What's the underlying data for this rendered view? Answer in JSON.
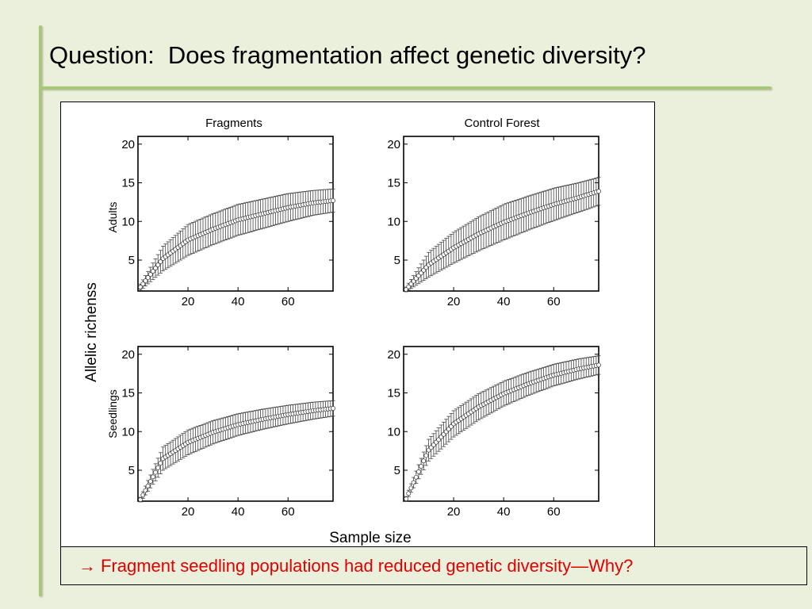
{
  "slide": {
    "title": "Question:  Does fragmentation affect genetic diversity?",
    "conclusion_arrow": "→",
    "conclusion_text": "Fragment seedling populations had reduced genetic diversity—Why?",
    "accent_color": "#a8c878",
    "conclusion_color": "#e00000"
  },
  "figure": {
    "y_label": "Allelic richenss",
    "x_label": "Sample size"
  },
  "chart_data": [
    {
      "type": "scatter",
      "panel": "top-left",
      "column_title": "Fragments",
      "row_label": "Adults",
      "xlim": [
        0,
        78
      ],
      "ylim": [
        1,
        21
      ],
      "xticks": [
        20,
        40,
        60
      ],
      "yticks": [
        5,
        10,
        15,
        20
      ],
      "x": [
        1,
        10,
        20,
        30,
        40,
        50,
        60,
        70,
        78
      ],
      "y": [
        1.5,
        5.2,
        7.6,
        9.0,
        10.2,
        11.0,
        11.8,
        12.4,
        12.7
      ],
      "err": [
        0.4,
        1.6,
        2.0,
        2.0,
        2.0,
        1.9,
        1.8,
        1.6,
        1.5
      ]
    },
    {
      "type": "scatter",
      "panel": "top-right",
      "column_title": "Control Forest",
      "row_label": "Adults",
      "xlim": [
        0,
        78
      ],
      "ylim": [
        1,
        21
      ],
      "xticks": [
        20,
        40,
        60
      ],
      "yticks": [
        5,
        10,
        15,
        20
      ],
      "x": [
        1,
        10,
        20,
        30,
        40,
        50,
        60,
        70,
        78
      ],
      "y": [
        1.2,
        4.4,
        6.6,
        8.4,
        9.9,
        11.1,
        12.2,
        13.1,
        13.9
      ],
      "err": [
        0.3,
        1.6,
        2.0,
        2.2,
        2.3,
        2.2,
        2.1,
        1.9,
        1.8
      ]
    },
    {
      "type": "scatter",
      "panel": "bottom-left",
      "column_title": "Fragments",
      "row_label": "Seedlings",
      "xlim": [
        0,
        78
      ],
      "ylim": [
        1,
        21
      ],
      "xticks": [
        20,
        40,
        60
      ],
      "yticks": [
        5,
        10,
        15,
        20
      ],
      "x": [
        1,
        10,
        20,
        30,
        40,
        50,
        60,
        70,
        78
      ],
      "y": [
        1.2,
        6.5,
        8.6,
        9.9,
        10.9,
        11.6,
        12.2,
        12.7,
        13.0
      ],
      "err": [
        0.3,
        1.5,
        1.6,
        1.5,
        1.4,
        1.3,
        1.2,
        1.1,
        1.0
      ]
    },
    {
      "type": "scatter",
      "panel": "bottom-right",
      "column_title": "Control Forest",
      "row_label": "Seedlings",
      "xlim": [
        0,
        78
      ],
      "ylim": [
        1,
        21
      ],
      "xticks": [
        20,
        40,
        60
      ],
      "yticks": [
        5,
        10,
        15,
        20
      ],
      "x": [
        1,
        10,
        20,
        30,
        40,
        50,
        60,
        70,
        78
      ],
      "y": [
        1.3,
        7.6,
        11.0,
        13.2,
        14.9,
        16.2,
        17.3,
        18.1,
        18.6
      ],
      "err": [
        0.3,
        1.4,
        1.7,
        1.7,
        1.6,
        1.5,
        1.4,
        1.3,
        1.2
      ]
    }
  ]
}
